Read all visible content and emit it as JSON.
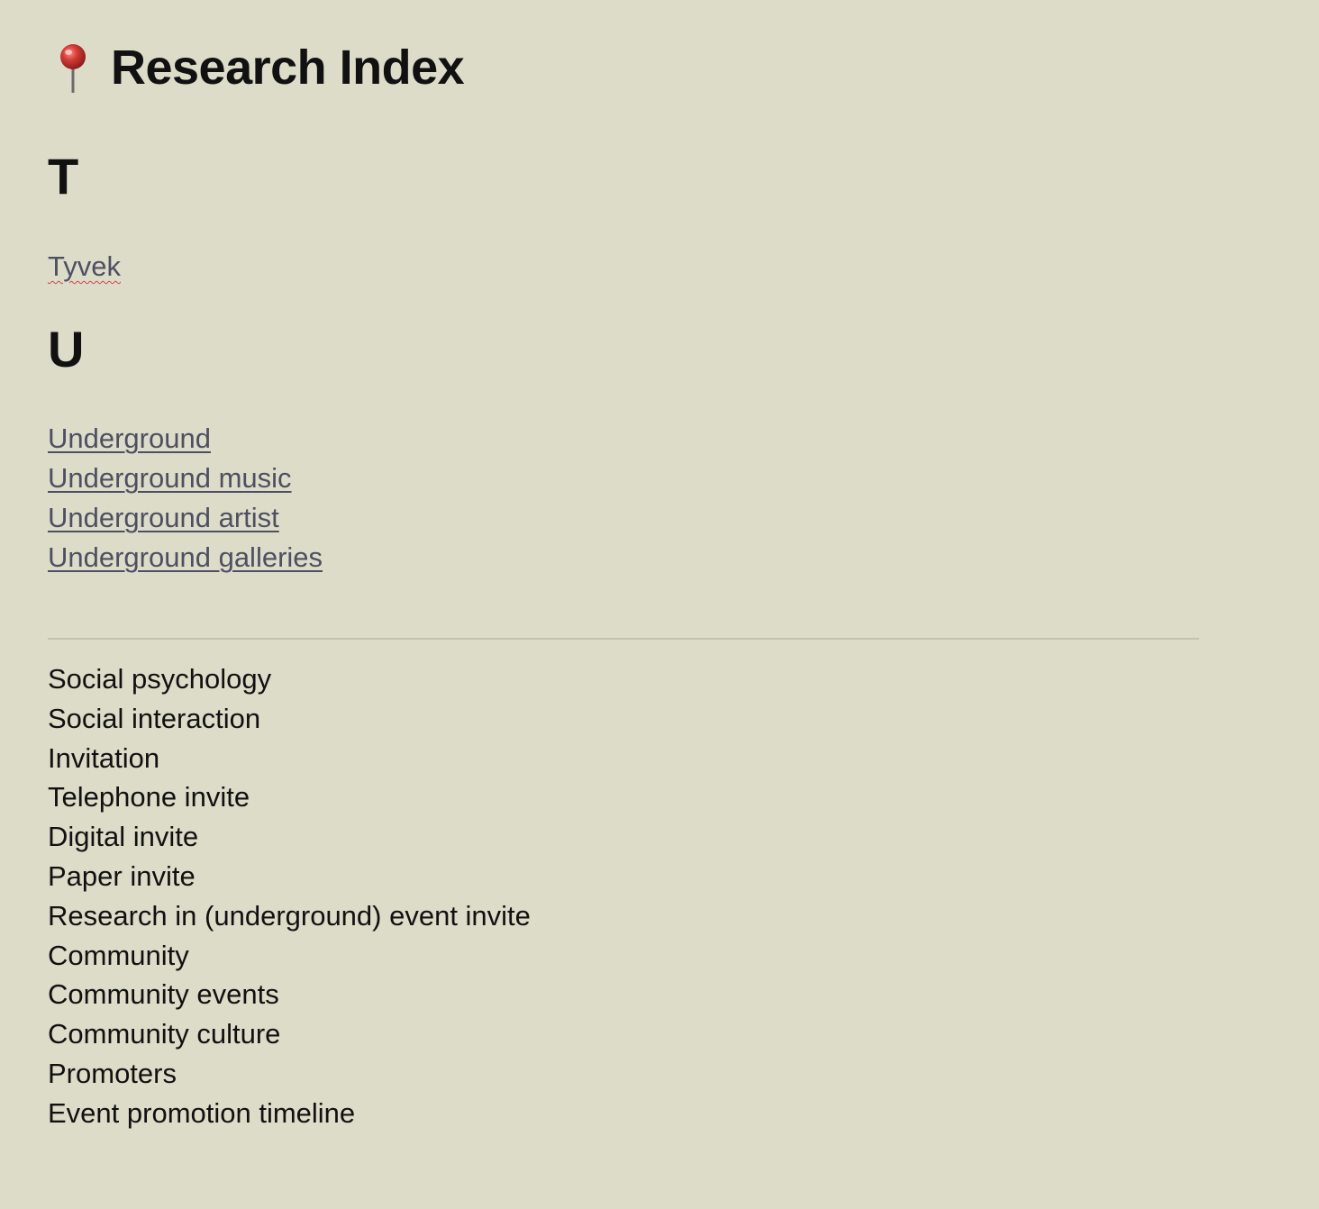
{
  "header": {
    "icon": "pushpin-icon",
    "title": "Research Index"
  },
  "sections": [
    {
      "letter": "T",
      "links": [
        "Tyvek"
      ]
    },
    {
      "letter": "U",
      "links": [
        "Underground",
        "Underground music",
        "Underground artist",
        "Underground galleries"
      ]
    }
  ],
  "topics": [
    "Social psychology",
    "Social interaction",
    "Invitation",
    "Telephone invite",
    "Digital invite",
    "Paper invite",
    "Research in (underground) event invite",
    "Community",
    "Community events",
    "Community culture",
    "Promoters",
    "Event promotion timeline"
  ],
  "colors": {
    "background": "#dddcc9",
    "link": "#4e5061",
    "divider": "#c4c3b1",
    "pin_head": "#d23b35"
  }
}
